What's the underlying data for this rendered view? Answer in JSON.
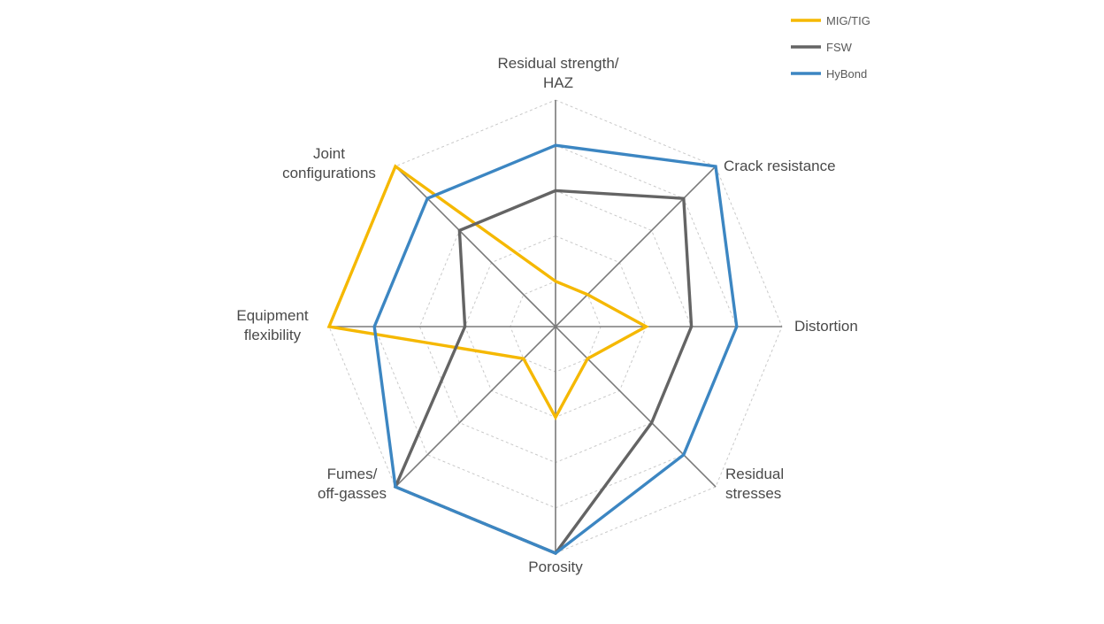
{
  "chart_data": {
    "type": "radar",
    "axes": [
      "Residual strength/ HAZ",
      "Crack resistance",
      "Distortion",
      "Residual stresses",
      "Porosity",
      "Fumes/ off-gasses",
      "Equipment flexibility",
      "Joint configurations"
    ],
    "axis_label_lines": [
      [
        "Residual strength/",
        "HAZ"
      ],
      [
        "Crack resistance"
      ],
      [
        "Distortion"
      ],
      [
        "Residual",
        "stresses"
      ],
      [
        "Porosity"
      ],
      [
        "Fumes/",
        "off-gasses"
      ],
      [
        "Equipment",
        "flexibility"
      ],
      [
        "Joint",
        "configurations"
      ]
    ],
    "rmax": 5,
    "grid_levels": 5,
    "grid": true,
    "legend_position": "top-right",
    "series": [
      {
        "name": "MIG/TIG",
        "color": "#F5B800",
        "values": [
          1,
          1,
          2,
          1,
          2,
          1,
          5,
          5
        ]
      },
      {
        "name": "FSW",
        "color": "#646464",
        "values": [
          3,
          4,
          3,
          3,
          5,
          5,
          2,
          3
        ]
      },
      {
        "name": "HyBond",
        "color": "#3C86C2",
        "values": [
          4,
          5,
          4,
          4,
          5,
          5,
          4,
          4
        ]
      }
    ]
  }
}
